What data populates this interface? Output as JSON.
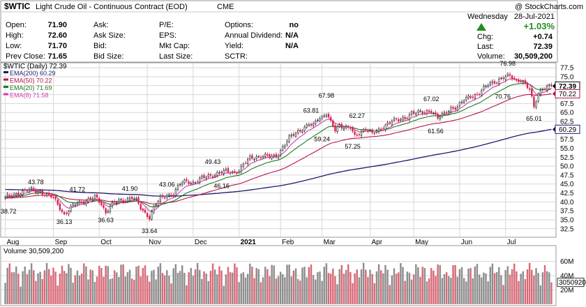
{
  "header": {
    "ticker": "$WTIC",
    "name": "Light Crude Oil - Continuous Contract (EOD)",
    "exchange": "CME",
    "copyright": "@ StockCharts.com",
    "day": "Wednesday",
    "date": "28-Jul-2021",
    "change_pct": "+1.03%",
    "up_arrow": "up-triangle-icon"
  },
  "quote": {
    "col1": [
      {
        "label": "Open:",
        "value": "71.90"
      },
      {
        "label": "High:",
        "value": "72.60"
      },
      {
        "label": "Low:",
        "value": "71.70"
      },
      {
        "label": "Prev Close:",
        "value": "71.65"
      }
    ],
    "col2": [
      {
        "label": "Ask:",
        "value": ""
      },
      {
        "label": "Ask Size:",
        "value": ""
      },
      {
        "label": "Bid:",
        "value": ""
      },
      {
        "label": "Bid Size:",
        "value": ""
      }
    ],
    "col3": [
      {
        "label": "P/E:",
        "value": ""
      },
      {
        "label": "EPS:",
        "value": ""
      },
      {
        "label": "Mkt Cap:",
        "value": ""
      },
      {
        "label": "Last Size:",
        "value": ""
      }
    ],
    "col4": [
      {
        "label": "Options:",
        "value": "no"
      },
      {
        "label": "Annual Dividend:",
        "value": "N/A"
      },
      {
        "label": "Yield:",
        "value": "N/A"
      },
      {
        "label": "SCTR:",
        "value": ""
      }
    ],
    "right": [
      {
        "label": "Chg:",
        "value": "+0.74"
      },
      {
        "label": "Last:",
        "value": "72.39"
      },
      {
        "label": "Volume:",
        "value": "30,509,200"
      }
    ]
  },
  "colors": {
    "up": "#222222",
    "down": "#d6204a",
    "ema200": "#1b1b6e",
    "ema50": "#b8124a",
    "ema20": "#1e7a1e",
    "ema8": "#cf3cb0",
    "vol_up": "#8e8e8e",
    "vol_down": "#d96a78",
    "grid": "#d7d7d7",
    "chg_green": "#1f8f1f"
  },
  "chart_data": {
    "type": "candlestick",
    "title": "$WTIC (Daily) 72.39",
    "legend": [
      {
        "name": "EMA(200)",
        "value": "60.29",
        "color_key": "ema200"
      },
      {
        "name": "EMA(50)",
        "value": "70.22",
        "color_key": "ema50"
      },
      {
        "name": "EMA(20)",
        "value": "71.69",
        "color_key": "ema20"
      },
      {
        "name": "EMA(8)",
        "value": "71.58",
        "color_key": "ema8"
      }
    ],
    "price_axis": {
      "min": 30.5,
      "max": 78.5,
      "ticks": [
        32.5,
        35.0,
        37.5,
        40.0,
        42.5,
        45.0,
        47.5,
        50.0,
        52.5,
        55.0,
        57.5,
        60.0,
        62.5,
        65.0,
        67.5,
        70.0,
        72.5,
        75.0,
        77.5
      ],
      "tick_labels": [
        "32.5",
        "35.0",
        "37.5",
        "40.0",
        "42.5",
        "45.0",
        "47.5",
        "50.0",
        "52.5",
        "55.0",
        "57.5",
        "60.0",
        "62.5",
        "65.0",
        "67.5",
        "70.0",
        "72.5",
        "75.0",
        "77.5"
      ]
    },
    "x_axis": {
      "months": [
        {
          "label": "Aug",
          "day": 0,
          "bold": false
        },
        {
          "label": "Sep",
          "day": 22,
          "bold": false
        },
        {
          "label": "Oct",
          "day": 43,
          "bold": false
        },
        {
          "label": "Nov",
          "day": 65,
          "bold": false
        },
        {
          "label": "Dec",
          "day": 86,
          "bold": false
        },
        {
          "label": "2021",
          "day": 107,
          "bold": true
        },
        {
          "label": "Feb",
          "day": 126,
          "bold": false
        },
        {
          "label": "Mar",
          "day": 145,
          "bold": false
        },
        {
          "label": "Apr",
          "day": 167,
          "bold": false
        },
        {
          "label": "May",
          "day": 187,
          "bold": false
        },
        {
          "label": "Jun",
          "day": 208,
          "bold": false
        },
        {
          "label": "Jul",
          "day": 229,
          "bold": false
        }
      ],
      "total_days": 251
    },
    "price_anchors": [
      [
        0,
        41.2
      ],
      [
        4,
        42.0
      ],
      [
        8,
        42.8
      ],
      [
        12,
        43.4
      ],
      [
        16,
        42.9
      ],
      [
        19,
        41.8
      ],
      [
        22,
        41.2
      ],
      [
        25,
        38.5
      ],
      [
        27,
        36.4
      ],
      [
        30,
        38.2
      ],
      [
        33,
        39.8
      ],
      [
        36,
        40.2
      ],
      [
        38,
        40.5
      ],
      [
        41,
        41.3
      ],
      [
        44,
        39.5
      ],
      [
        46,
        37.0
      ],
      [
        48,
        38.9
      ],
      [
        51,
        40.0
      ],
      [
        55,
        40.7
      ],
      [
        58,
        41.3
      ],
      [
        60,
        40.3
      ],
      [
        62,
        38.2
      ],
      [
        64,
        36.8
      ],
      [
        66,
        35.8
      ],
      [
        68,
        38.5
      ],
      [
        71,
        40.9
      ],
      [
        74,
        41.8
      ],
      [
        77,
        42.4
      ],
      [
        80,
        45.0
      ],
      [
        83,
        45.8
      ],
      [
        86,
        45.4
      ],
      [
        89,
        46.3
      ],
      [
        92,
        47.0
      ],
      [
        95,
        47.6
      ],
      [
        98,
        48.2
      ],
      [
        101,
        48.5
      ],
      [
        104,
        48.3
      ],
      [
        107,
        48.8
      ],
      [
        109,
        50.4
      ],
      [
        112,
        52.2
      ],
      [
        115,
        52.6
      ],
      [
        118,
        52.9
      ],
      [
        121,
        52.5
      ],
      [
        124,
        52.8
      ],
      [
        127,
        55.3
      ],
      [
        130,
        57.8
      ],
      [
        133,
        59.3
      ],
      [
        136,
        60.5
      ],
      [
        139,
        61.6
      ],
      [
        141,
        61.2
      ],
      [
        143,
        63.3
      ],
      [
        145,
        63.8
      ],
      [
        147,
        64.9
      ],
      [
        149,
        62.2
      ],
      [
        151,
        59.9
      ],
      [
        153,
        61.3
      ],
      [
        155,
        61.0
      ],
      [
        158,
        60.9
      ],
      [
        160,
        58.1
      ],
      [
        163,
        59.4
      ],
      [
        165,
        60.8
      ],
      [
        168,
        59.2
      ],
      [
        171,
        59.7
      ],
      [
        174,
        61.5
      ],
      [
        177,
        63.0
      ],
      [
        180,
        62.7
      ],
      [
        183,
        63.3
      ],
      [
        186,
        65.1
      ],
      [
        189,
        64.9
      ],
      [
        192,
        64.8
      ],
      [
        195,
        65.7
      ],
      [
        198,
        63.5
      ],
      [
        201,
        64.5
      ],
      [
        204,
        66.2
      ],
      [
        207,
        66.7
      ],
      [
        210,
        68.4
      ],
      [
        213,
        69.5
      ],
      [
        216,
        70.1
      ],
      [
        219,
        71.7
      ],
      [
        222,
        73.1
      ],
      [
        225,
        73.9
      ],
      [
        228,
        74.8
      ],
      [
        231,
        75.1
      ],
      [
        234,
        73.9
      ],
      [
        236,
        74.3
      ],
      [
        238,
        72.8
      ],
      [
        240,
        71.3
      ],
      [
        242,
        66.4
      ],
      [
        244,
        70.4
      ],
      [
        246,
        71.9
      ],
      [
        248,
        72.0
      ],
      [
        250,
        72.39
      ]
    ],
    "ema_last": {
      "ema200": 60.29,
      "ema50": 70.22,
      "ema20": 71.69,
      "ema8": 71.58
    },
    "annotations": [
      {
        "text": "38.72",
        "day": 0,
        "price": 38.72,
        "pos": "below-left"
      },
      {
        "text": "43.78",
        "day": 14,
        "price": 43.78,
        "pos": "above"
      },
      {
        "text": "36.13",
        "day": 27,
        "price": 36.13,
        "pos": "below"
      },
      {
        "text": "41.72",
        "day": 33,
        "price": 41.72,
        "pos": "above"
      },
      {
        "text": "36.63",
        "day": 46,
        "price": 36.63,
        "pos": "below"
      },
      {
        "text": "41.90",
        "day": 57,
        "price": 41.9,
        "pos": "above"
      },
      {
        "text": "33.64",
        "day": 66,
        "price": 33.64,
        "pos": "below"
      },
      {
        "text": "43.06",
        "day": 74,
        "price": 43.06,
        "pos": "above"
      },
      {
        "text": "49.43",
        "day": 95,
        "price": 49.43,
        "pos": "above"
      },
      {
        "text": "46.16",
        "day": 99,
        "price": 46.16,
        "pos": "below"
      },
      {
        "text": "63.81",
        "day": 140,
        "price": 63.81,
        "pos": "above"
      },
      {
        "text": "67.98",
        "day": 147,
        "price": 67.98,
        "pos": "above"
      },
      {
        "text": "59.24",
        "day": 145,
        "price": 59.24,
        "pos": "below"
      },
      {
        "text": "62.27",
        "day": 161,
        "price": 62.27,
        "pos": "above"
      },
      {
        "text": "57.25",
        "day": 159,
        "price": 57.25,
        "pos": "below"
      },
      {
        "text": "67.02",
        "day": 195,
        "price": 67.02,
        "pos": "above"
      },
      {
        "text": "61.56",
        "day": 197,
        "price": 61.56,
        "pos": "below"
      },
      {
        "text": "76.98",
        "day": 230,
        "price": 76.98,
        "pos": "above"
      },
      {
        "text": "70.76",
        "day": 232,
        "price": 70.76,
        "pos": "below-left"
      },
      {
        "text": "65.01",
        "day": 242,
        "price": 65.01,
        "pos": "below"
      }
    ],
    "right_tags": [
      {
        "text": "72.39",
        "price": 72.39
      },
      {
        "text": "70.22",
        "price": 70.22
      },
      {
        "text": "60.29",
        "price": 60.29
      }
    ],
    "volume": {
      "title": "Volume 30,509,200",
      "last": 30509200,
      "max": 80000000,
      "ticks": [
        20000000,
        40000000,
        60000000
      ],
      "tick_labels": [
        "20M",
        "40M",
        "60M"
      ],
      "last_tag": "30509200"
    }
  }
}
